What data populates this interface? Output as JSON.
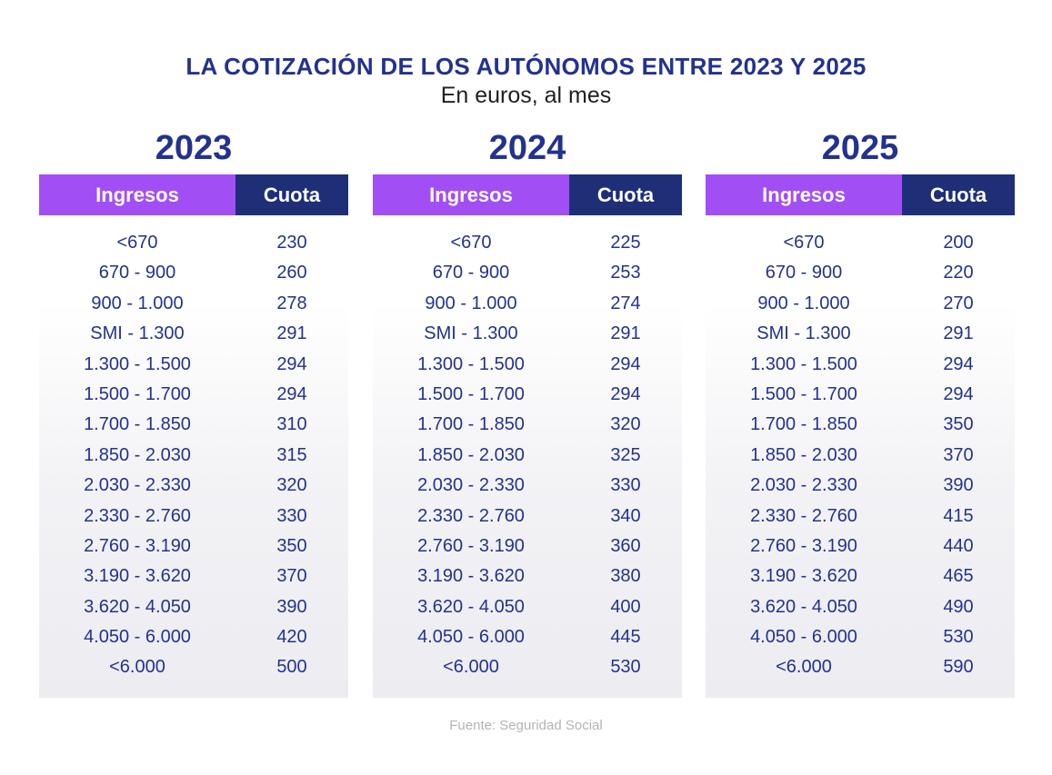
{
  "title": "LA COTIZACIÓN DE LOS AUTÓNOMOS ENTRE 2023 Y 2025",
  "subtitle": "En euros, al mes",
  "source": "Fuente: Seguridad Social",
  "colors": {
    "title": "#23328f",
    "header_ingresos": "#a24ef5",
    "header_cuota": "#1e2f78",
    "text": "#23328f"
  },
  "chart_data": {
    "type": "table",
    "columns": [
      "Ingresos",
      "Cuota"
    ],
    "ranges": [
      "<670",
      "670 - 900",
      "900 - 1.000",
      "SMI - 1.300",
      "1.300 - 1.500",
      "1.500 - 1.700",
      "1.700 - 1.850",
      "1.850 - 2.030",
      "2.030 - 2.330",
      "2.330 - 2.760",
      "2.760 - 3.190",
      "3.190 - 3.620",
      "3.620 - 4.050",
      "4.050 - 6.000",
      "<6.000"
    ],
    "tables": [
      {
        "year": "2023",
        "cuotas": [
          "230",
          "260",
          "278",
          "291",
          "294",
          "294",
          "310",
          "315",
          "320",
          "330",
          "350",
          "370",
          "390",
          "420",
          "500"
        ]
      },
      {
        "year": "2024",
        "cuotas": [
          "225",
          "253",
          "274",
          "291",
          "294",
          "294",
          "320",
          "325",
          "330",
          "340",
          "360",
          "380",
          "400",
          "445",
          "530"
        ]
      },
      {
        "year": "2025",
        "cuotas": [
          "200",
          "220",
          "270",
          "291",
          "294",
          "294",
          "350",
          "370",
          "390",
          "415",
          "440",
          "465",
          "490",
          "530",
          "590"
        ]
      }
    ]
  }
}
